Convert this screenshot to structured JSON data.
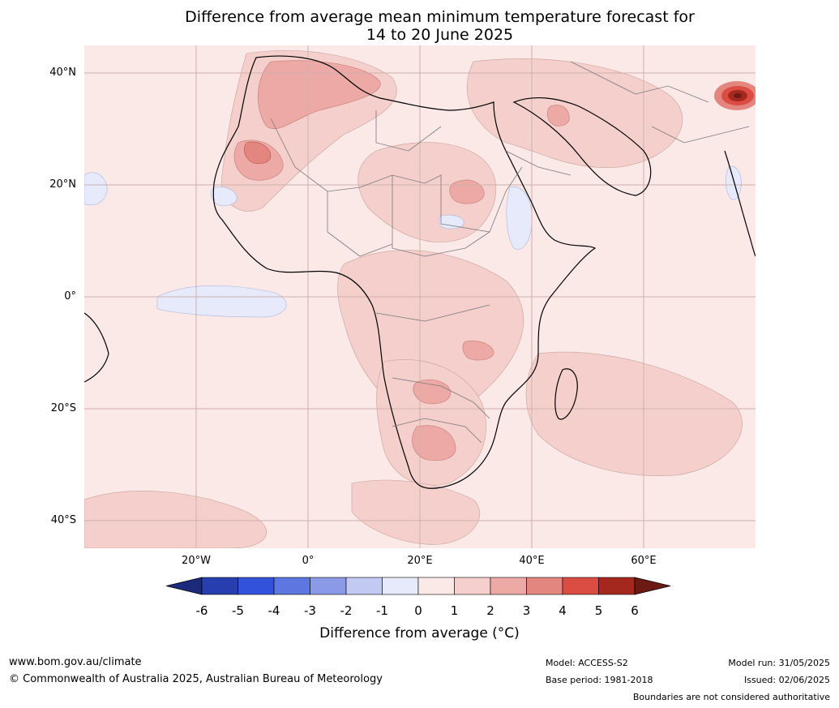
{
  "title": {
    "line1": "Difference from average mean minimum temperature forecast for",
    "line2": "14 to 20 June 2025"
  },
  "map": {
    "lat_labels": [
      "40°N",
      "20°N",
      "0°",
      "20°S",
      "40°S"
    ],
    "lon_labels": [
      "20°W",
      "0°",
      "20°E",
      "40°E",
      "60°E"
    ]
  },
  "colorbar": {
    "ticks": [
      "-6",
      "-5",
      "-4",
      "-3",
      "-2",
      "-1",
      "0",
      "1",
      "2",
      "3",
      "4",
      "5",
      "6"
    ],
    "colors": [
      "#1b2a7a",
      "#273fae",
      "#3352dc",
      "#5d76e0",
      "#8a9ae7",
      "#c2c9f2",
      "#e7eafb",
      "#fbe9e7",
      "#f4cfcb",
      "#eca9a5",
      "#e48680",
      "#db4c43",
      "#a5281f",
      "#6d1a14"
    ],
    "label": "Difference from average (°C)"
  },
  "footer": {
    "website": "www.bom.gov.au/climate",
    "copyright": "© Commonwealth of Australia 2025, Australian Bureau of Meteorology",
    "model": "Model: ACCESS-S2",
    "base_period": "Base period: 1981-2018",
    "model_run": "Model run: 31/05/2025",
    "issued": "Issued: 02/06/2025",
    "disclaimer": "Boundaries are not considered authoritative"
  }
}
